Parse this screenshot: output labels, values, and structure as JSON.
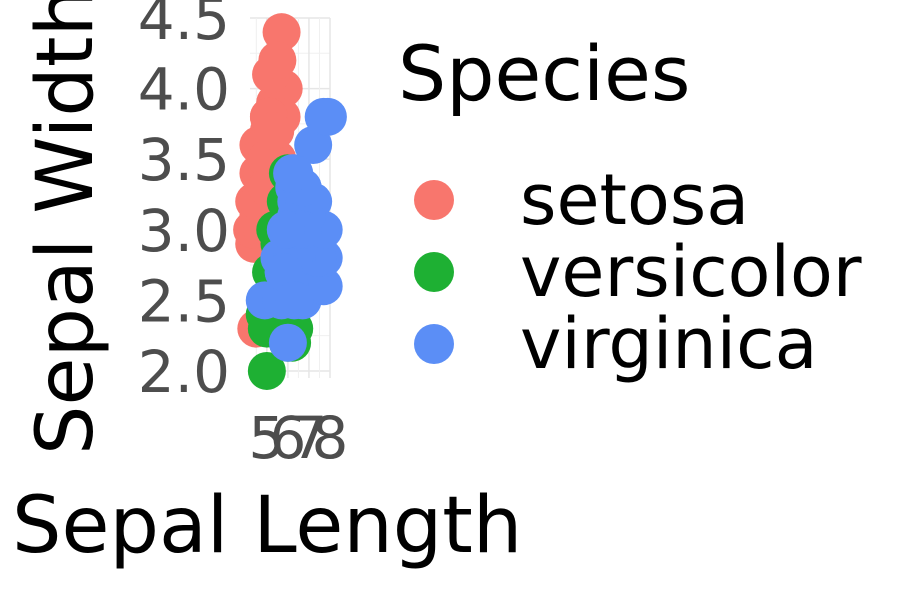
{
  "chart_data": {
    "type": "scatter",
    "xlabel": "Sepal Length",
    "ylabel": "Sepal Width",
    "xlim": [
      4.2,
      8.0
    ],
    "ylim": [
      1.95,
      4.5
    ],
    "x_ticks": [
      5,
      6,
      7,
      8
    ],
    "y_ticks": [
      "2.0",
      "2.5",
      "3.0",
      "3.5",
      "4.0",
      "4.5"
    ],
    "grid": true,
    "legend": {
      "title": "Species",
      "placement": "right"
    },
    "series": [
      {
        "name": "setosa",
        "color": "#F8766D",
        "points": [
          [
            5.1,
            3.5
          ],
          [
            4.9,
            3.0
          ],
          [
            4.7,
            3.2
          ],
          [
            4.6,
            3.1
          ],
          [
            5.0,
            3.6
          ],
          [
            5.4,
            3.9
          ],
          [
            4.6,
            3.4
          ],
          [
            5.0,
            3.4
          ],
          [
            4.4,
            2.9
          ],
          [
            4.9,
            3.1
          ],
          [
            5.4,
            3.7
          ],
          [
            4.8,
            3.4
          ],
          [
            4.8,
            3.0
          ],
          [
            4.3,
            3.0
          ],
          [
            5.8,
            4.0
          ],
          [
            5.7,
            4.4
          ],
          [
            5.4,
            3.9
          ],
          [
            5.1,
            3.5
          ],
          [
            5.7,
            3.8
          ],
          [
            5.1,
            3.8
          ],
          [
            5.4,
            3.4
          ],
          [
            5.1,
            3.7
          ],
          [
            4.6,
            3.6
          ],
          [
            5.1,
            3.3
          ],
          [
            4.8,
            3.4
          ],
          [
            5.0,
            3.0
          ],
          [
            5.0,
            3.4
          ],
          [
            5.2,
            3.5
          ],
          [
            5.2,
            3.4
          ],
          [
            4.7,
            3.2
          ],
          [
            4.8,
            3.1
          ],
          [
            5.4,
            3.4
          ],
          [
            5.2,
            4.1
          ],
          [
            5.5,
            4.2
          ],
          [
            4.9,
            3.1
          ],
          [
            5.0,
            3.2
          ],
          [
            5.5,
            3.5
          ],
          [
            4.9,
            3.6
          ],
          [
            4.4,
            3.0
          ],
          [
            5.1,
            3.4
          ],
          [
            5.0,
            3.5
          ],
          [
            4.5,
            2.3
          ],
          [
            4.4,
            3.2
          ],
          [
            5.0,
            3.5
          ],
          [
            5.1,
            3.8
          ],
          [
            4.8,
            3.0
          ],
          [
            5.1,
            3.8
          ],
          [
            4.6,
            3.2
          ],
          [
            5.3,
            3.7
          ],
          [
            5.0,
            3.3
          ]
        ]
      },
      {
        "name": "versicolor",
        "color": "#1EB033",
        "points": [
          [
            7.0,
            3.2
          ],
          [
            6.4,
            3.2
          ],
          [
            6.9,
            3.1
          ],
          [
            5.5,
            2.3
          ],
          [
            6.5,
            2.8
          ],
          [
            5.7,
            2.8
          ],
          [
            6.3,
            3.3
          ],
          [
            4.9,
            2.4
          ],
          [
            6.6,
            2.9
          ],
          [
            5.2,
            2.7
          ],
          [
            5.0,
            2.0
          ],
          [
            5.9,
            3.0
          ],
          [
            6.0,
            2.2
          ],
          [
            6.1,
            2.9
          ],
          [
            5.6,
            2.9
          ],
          [
            6.7,
            3.1
          ],
          [
            5.6,
            3.0
          ],
          [
            5.8,
            2.7
          ],
          [
            6.2,
            2.2
          ],
          [
            5.6,
            2.5
          ],
          [
            5.9,
            3.2
          ],
          [
            6.1,
            2.8
          ],
          [
            6.3,
            2.5
          ],
          [
            6.1,
            2.8
          ],
          [
            6.4,
            2.9
          ],
          [
            6.6,
            3.0
          ],
          [
            6.8,
            2.8
          ],
          [
            6.7,
            3.0
          ],
          [
            6.0,
            2.9
          ],
          [
            5.7,
            2.6
          ],
          [
            5.5,
            2.4
          ],
          [
            5.5,
            2.4
          ],
          [
            5.8,
            2.7
          ],
          [
            6.0,
            2.7
          ],
          [
            5.4,
            3.0
          ],
          [
            6.0,
            3.4
          ],
          [
            6.7,
            3.1
          ],
          [
            6.3,
            2.3
          ],
          [
            5.6,
            3.0
          ],
          [
            5.5,
            2.5
          ],
          [
            5.5,
            2.6
          ],
          [
            6.1,
            3.0
          ],
          [
            5.8,
            2.6
          ],
          [
            5.0,
            2.3
          ],
          [
            5.6,
            2.7
          ],
          [
            5.7,
            3.0
          ],
          [
            5.7,
            2.9
          ],
          [
            6.2,
            2.9
          ],
          [
            5.1,
            2.5
          ],
          [
            5.7,
            2.8
          ]
        ]
      },
      {
        "name": "virginica",
        "color": "#5B8EF6",
        "points": [
          [
            6.3,
            3.3
          ],
          [
            5.8,
            2.7
          ],
          [
            7.1,
            3.0
          ],
          [
            6.3,
            2.9
          ],
          [
            6.5,
            3.0
          ],
          [
            7.6,
            3.0
          ],
          [
            4.9,
            2.5
          ],
          [
            7.3,
            2.9
          ],
          [
            6.7,
            2.5
          ],
          [
            7.2,
            3.6
          ],
          [
            6.5,
            3.2
          ],
          [
            6.4,
            2.7
          ],
          [
            6.8,
            3.0
          ],
          [
            5.7,
            2.5
          ],
          [
            5.8,
            2.8
          ],
          [
            6.4,
            3.2
          ],
          [
            6.5,
            3.0
          ],
          [
            7.7,
            3.8
          ],
          [
            7.7,
            2.6
          ],
          [
            6.0,
            2.2
          ],
          [
            6.9,
            3.2
          ],
          [
            5.6,
            2.8
          ],
          [
            7.7,
            2.8
          ],
          [
            6.3,
            2.7
          ],
          [
            6.7,
            3.3
          ],
          [
            7.2,
            3.2
          ],
          [
            6.2,
            2.8
          ],
          [
            6.1,
            3.0
          ],
          [
            6.4,
            2.8
          ],
          [
            7.2,
            3.0
          ],
          [
            7.4,
            2.8
          ],
          [
            7.9,
            3.8
          ],
          [
            6.4,
            2.8
          ],
          [
            6.3,
            2.8
          ],
          [
            6.1,
            2.6
          ],
          [
            7.7,
            3.0
          ],
          [
            6.3,
            3.4
          ],
          [
            6.4,
            3.1
          ],
          [
            6.0,
            3.0
          ],
          [
            6.9,
            3.1
          ],
          [
            6.7,
            3.1
          ],
          [
            6.9,
            3.1
          ],
          [
            5.8,
            2.7
          ],
          [
            6.8,
            3.2
          ],
          [
            6.7,
            3.3
          ],
          [
            6.7,
            3.0
          ],
          [
            6.3,
            2.5
          ],
          [
            6.5,
            3.0
          ],
          [
            6.2,
            3.4
          ],
          [
            5.9,
            3.0
          ]
        ]
      }
    ]
  }
}
